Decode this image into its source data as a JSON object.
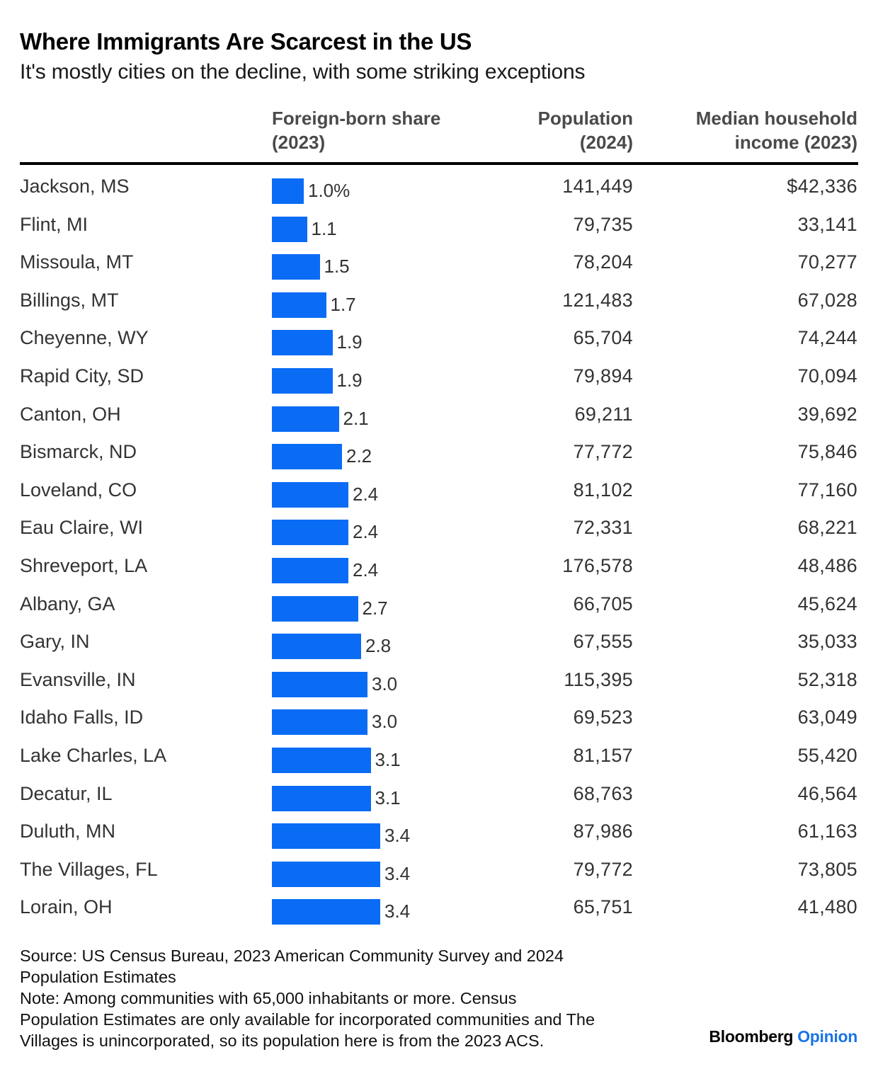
{
  "header": {
    "title": "Where Immigrants Are Scarcest in the US",
    "subtitle": "It's mostly cities on the decline, with some striking exceptions"
  },
  "columns": {
    "share": [
      "Foreign-born share",
      "(2023)"
    ],
    "population": [
      "Population",
      "(2024)"
    ],
    "income": [
      "Median household",
      "income (2023)"
    ]
  },
  "chart_data": {
    "type": "bar",
    "title": "Where Immigrants Are Scarcest in the US",
    "subtitle": "It's mostly cities on the decline, with some striking exceptions",
    "categories": [
      "Jackson, MS",
      "Flint, MI",
      "Missoula, MT",
      "Billings, MT",
      "Cheyenne, WY",
      "Rapid City, SD",
      "Canton, OH",
      "Bismarck, ND",
      "Loveland, CO",
      "Eau Claire, WI",
      "Shreveport, LA",
      "Albany, GA",
      "Gary, IN",
      "Evansville, IN",
      "Idaho Falls, ID",
      "Lake Charles, LA",
      "Decatur, IL",
      "Duluth, MN",
      "The Villages, FL",
      "Lorain, OH"
    ],
    "values": [
      1.0,
      1.1,
      1.5,
      1.7,
      1.9,
      1.9,
      2.1,
      2.2,
      2.4,
      2.4,
      2.4,
      2.7,
      2.8,
      3.0,
      3.0,
      3.1,
      3.1,
      3.4,
      3.4,
      3.4
    ],
    "value_labels": [
      "1.0%",
      "1.1",
      "1.5",
      "1.7",
      "1.9",
      "1.9",
      "2.1",
      "2.2",
      "2.4",
      "2.4",
      "2.4",
      "2.7",
      "2.8",
      "3.0",
      "3.0",
      "3.1",
      "3.1",
      "3.4",
      "3.4",
      "3.4"
    ],
    "population": [
      "141,449",
      "79,735",
      "78,204",
      "121,483",
      "65,704",
      "79,894",
      "69,211",
      "77,772",
      "81,102",
      "72,331",
      "176,578",
      "66,705",
      "67,555",
      "115,395",
      "69,523",
      "81,157",
      "68,763",
      "87,986",
      "79,772",
      "65,751"
    ],
    "income": [
      "$42,336",
      "33,141",
      "70,277",
      "67,028",
      "74,244",
      "70,094",
      "39,692",
      "75,846",
      "77,160",
      "68,221",
      "48,486",
      "45,624",
      "35,033",
      "52,318",
      "63,049",
      "55,420",
      "46,564",
      "61,163",
      "73,805",
      "41,480"
    ],
    "orientation": "horizontal",
    "bar_color": "#0a6cf5",
    "grid": false
  },
  "footer": {
    "source_lines": [
      "Source: US Census Bureau, 2023 American Community Survey and 2024",
      "Population Estimates",
      "Note: Among communities with 65,000 inhabitants or more. Census",
      "Population Estimates are only available for incorporated communities and The",
      "Villages is unincorporated, so its population here is from the 2023 ACS."
    ],
    "brand_primary": "Bloomberg",
    "brand_secondary": "Opinion"
  },
  "colors": {
    "bar": "#0a6cf5",
    "brand_accent": "#1a73e8"
  }
}
